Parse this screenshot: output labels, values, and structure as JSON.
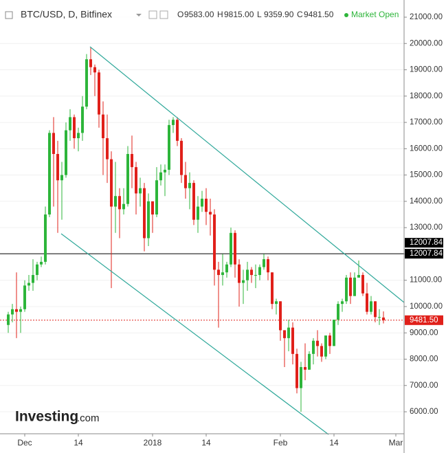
{
  "header": {
    "symbol": "BTC/USD, D, Bitfinex",
    "ohlc": [
      {
        "key": "O",
        "value": "9583.00"
      },
      {
        "key": "H",
        "value": "9815.00"
      },
      {
        "key": "L",
        "value": "9359.90"
      },
      {
        "key": "C",
        "value": "9481.50"
      }
    ],
    "status": "Market Open"
  },
  "logo": {
    "name": "Investing",
    "suffix": ".com"
  },
  "chart_data": {
    "type": "candlestick",
    "categories": [
      null,
      null,
      null,
      null,
      "Dec",
      null,
      null,
      null,
      null,
      null,
      null,
      null,
      null,
      null,
      null,
      null,
      null,
      "14",
      null,
      null,
      null,
      null,
      null,
      null,
      null,
      null,
      null,
      null,
      null,
      null,
      null,
      null,
      null,
      null,
      null,
      "2018",
      null,
      null,
      null,
      null,
      null,
      null,
      null,
      null,
      null,
      null,
      null,
      null,
      "14",
      null,
      null,
      null,
      null,
      null,
      null,
      null,
      null,
      null,
      null,
      null,
      null,
      null,
      null,
      null,
      null,
      null,
      "Feb",
      null,
      null,
      null,
      null,
      null,
      null,
      null,
      null,
      null,
      null,
      null,
      null,
      "14",
      null,
      null,
      null,
      null,
      null,
      null,
      null,
      null,
      null,
      null,
      null,
      null,
      null,
      null,
      "Mar"
    ],
    "open": [
      9300,
      9700,
      9900,
      9800,
      9900,
      10800,
      10900,
      11200,
      11600,
      11700,
      13500,
      16600,
      15800,
      14800,
      15000,
      16700,
      17200,
      16400,
      16600,
      17600,
      19400,
      19100,
      18900,
      17300,
      16400,
      15600,
      13800,
      14200,
      13700,
      13900,
      15800,
      15300,
      14300,
      14500,
      12600,
      14000,
      13500,
      14800,
      15100,
      15200,
      16900,
      17100,
      16300,
      15000,
      14500,
      14700,
      13300,
      13800,
      14100,
      13600,
      13500,
      11400,
      11200,
      11300,
      11600,
      12800,
      11600,
      10900,
      11000,
      11400,
      11200,
      11200,
      11500,
      11800,
      11300,
      10100,
      10200,
      9100,
      8800,
      9200,
      8200,
      6900,
      7700,
      7600,
      8200,
      8700,
      8500,
      8100,
      8900,
      8500,
      9500,
      10100,
      10200,
      11100,
      10400,
      11100,
      11200,
      10500,
      9800,
      10200,
      9600,
      9583,
      null,
      null,
      null
    ],
    "high": [
      9800,
      10100,
      11300,
      10000,
      11000,
      11200,
      11800,
      11700,
      11900,
      13800,
      16700,
      17200,
      16300,
      15500,
      17000,
      17500,
      17300,
      16800,
      18000,
      19600,
      19850,
      19200,
      19000,
      17800,
      17300,
      15900,
      15500,
      14500,
      14500,
      16100,
      16500,
      15500,
      14900,
      14700,
      14300,
      14000,
      15300,
      15400,
      15400,
      17100,
      17200,
      17200,
      16400,
      15500,
      15100,
      14800,
      14200,
      14400,
      14500,
      14100,
      13700,
      11700,
      12000,
      11700,
      13000,
      12900,
      11800,
      11400,
      11700,
      11500,
      11600,
      11600,
      12000,
      11900,
      11300,
      10300,
      10200,
      9100,
      9500,
      9400,
      8400,
      7900,
      8600,
      8300,
      8800,
      9100,
      8600,
      8900,
      9000,
      9500,
      10200,
      10300,
      11200,
      11300,
      11300,
      11750,
      11300,
      10900,
      10400,
      10200,
      9900,
      9815,
      null,
      null,
      null
    ],
    "low": [
      9000,
      9400,
      8800,
      9000,
      9800,
      10600,
      10600,
      11000,
      11500,
      11600,
      13400,
      13800,
      12800,
      13300,
      14900,
      16300,
      16000,
      15900,
      16300,
      17500,
      18800,
      18000,
      16800,
      15000,
      14700,
      10700,
      12800,
      12600,
      13500,
      13800,
      14500,
      13500,
      13800,
      12100,
      12300,
      12800,
      13400,
      14600,
      14200,
      15000,
      16600,
      16100,
      14700,
      14100,
      13700,
      13100,
      12800,
      13600,
      13100,
      12700,
      10800,
      9200,
      10800,
      11100,
      11500,
      11100,
      10000,
      10100,
      10600,
      10900,
      10700,
      11000,
      11400,
      11000,
      9900,
      9700,
      8700,
      7700,
      8300,
      7800,
      6700,
      6000,
      7200,
      7600,
      7800,
      8100,
      7900,
      8000,
      8200,
      8500,
      9300,
      9800,
      10100,
      10100,
      10400,
      11100,
      10400,
      9700,
      9700,
      9400,
      9300,
      9359.9,
      null,
      null,
      null
    ],
    "close": [
      9700,
      9900,
      9800,
      9900,
      10800,
      10900,
      11200,
      11600,
      11700,
      13500,
      16600,
      15800,
      14800,
      15000,
      16700,
      17200,
      16400,
      16600,
      17600,
      19400,
      19100,
      18900,
      17300,
      16400,
      15600,
      13800,
      14200,
      13700,
      13900,
      15800,
      15300,
      14300,
      14500,
      12600,
      14000,
      13500,
      14800,
      15100,
      15200,
      16900,
      17100,
      16300,
      15000,
      14500,
      14700,
      13300,
      13800,
      14100,
      13600,
      13500,
      11400,
      11200,
      11300,
      11600,
      12800,
      11600,
      10900,
      11000,
      11400,
      11200,
      11200,
      11500,
      11800,
      11300,
      10100,
      10200,
      9100,
      8800,
      9200,
      8200,
      6900,
      7700,
      7600,
      8200,
      8700,
      8500,
      8100,
      8900,
      8500,
      9500,
      10100,
      10200,
      11100,
      10400,
      11100,
      11200,
      10500,
      9800,
      10200,
      9600,
      9600,
      9481.5,
      null,
      null,
      null
    ],
    "up_color": "#2db53a",
    "down_color": "#e0201a",
    "ylim": [
      5165,
      21653
    ],
    "yticks": [
      {
        "value": 6000,
        "label": "6000.00"
      },
      {
        "value": 7000,
        "label": "7000.00"
      },
      {
        "value": 8000,
        "label": "8000.00"
      },
      {
        "value": 9000,
        "label": "9000.00"
      },
      {
        "value": 10000,
        "label": "10000.00"
      },
      {
        "value": 11000,
        "label": "11000.00"
      },
      {
        "value": 12000,
        "label": "12000.00"
      },
      {
        "value": 13000,
        "label": "13000.00"
      },
      {
        "value": 14000,
        "label": "14000.00"
      },
      {
        "value": 15000,
        "label": "15000.00"
      },
      {
        "value": 16000,
        "label": "16000.00"
      },
      {
        "value": 17000,
        "label": "17000.00"
      },
      {
        "value": 18000,
        "label": "18000.00"
      },
      {
        "value": 19000,
        "label": "19000.00"
      },
      {
        "value": 20000,
        "label": "20000.00"
      },
      {
        "value": 21000,
        "label": "21000.00"
      }
    ],
    "hlines": [
      {
        "value": 12007.84,
        "label": "12007.84",
        "color": "#000000"
      },
      {
        "value": 9481.5,
        "label": "9481.50",
        "color": "#e0201a"
      }
    ],
    "grid": true
  }
}
